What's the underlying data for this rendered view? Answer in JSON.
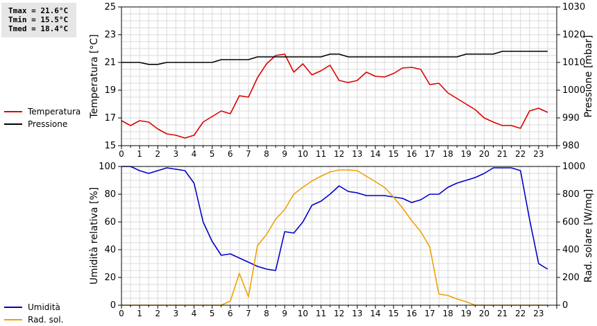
{
  "stats": {
    "tmax": "Tmax = 21.6°C",
    "tmin": "Tmin = 15.5°C",
    "tmed": "Tmed = 18.4°C"
  },
  "colors": {
    "temperature": "#dd0000",
    "pressure": "#000000",
    "humidity": "#0000c8",
    "radiation": "#f0a000",
    "grid": "#d9d9d9"
  },
  "chart_data": [
    {
      "type": "line",
      "title": "",
      "xlabel": "",
      "x_range": [
        0,
        24
      ],
      "x_ticks": [
        "0",
        "1",
        "2",
        "3",
        "4",
        "5",
        "6",
        "7",
        "8",
        "9",
        "10",
        "11",
        "12",
        "13",
        "14",
        "15",
        "16",
        "17",
        "18",
        "19",
        "20",
        "21",
        "22",
        "23"
      ],
      "y_left": {
        "label": "Temperatura [°C]",
        "range": [
          15,
          25
        ],
        "ticks": [
          "15",
          "17",
          "19",
          "21",
          "23",
          "25"
        ]
      },
      "y_right": {
        "label": "Pressione [mbar]",
        "range": [
          980,
          1030
        ],
        "ticks": [
          "980",
          "990",
          "1000",
          "1010",
          "1020",
          "1030"
        ]
      },
      "grid": true,
      "series": [
        {
          "name": "Temperatura",
          "axis": "left",
          "x": [
            0,
            0.5,
            1,
            1.5,
            2,
            2.5,
            3,
            3.5,
            4,
            4.5,
            5,
            5.5,
            6,
            6.5,
            7,
            7.5,
            8,
            8.5,
            9,
            9.5,
            10,
            10.5,
            11,
            11.5,
            12,
            12.5,
            13,
            13.5,
            14,
            14.5,
            15,
            15.5,
            16,
            16.5,
            17,
            17.5,
            18,
            18.5,
            19,
            19.5,
            20,
            20.5,
            21,
            21.5,
            22,
            22.5,
            23,
            23.5
          ],
          "values": [
            16.8,
            16.45,
            16.8,
            16.7,
            16.2,
            15.85,
            15.75,
            15.55,
            15.75,
            16.7,
            17.1,
            17.5,
            17.3,
            18.6,
            18.5,
            19.9,
            20.9,
            21.5,
            21.6,
            20.3,
            20.9,
            20.1,
            20.4,
            20.8,
            19.7,
            19.55,
            19.7,
            20.3,
            20.0,
            19.95,
            20.2,
            20.6,
            20.65,
            20.5,
            19.4,
            19.5,
            18.8,
            18.4,
            18.0,
            17.6,
            17.0,
            16.7,
            16.45,
            16.45,
            16.25,
            17.5,
            17.7,
            17.4
          ]
        },
        {
          "name": "Pressione",
          "axis": "right",
          "x": [
            0,
            0.5,
            1,
            1.5,
            2,
            2.5,
            3,
            3.5,
            4,
            4.5,
            5,
            5.5,
            6,
            6.5,
            7,
            7.5,
            8,
            8.5,
            9,
            9.5,
            10,
            10.5,
            11,
            11.5,
            12,
            12.5,
            13,
            13.5,
            14,
            14.5,
            15,
            15.5,
            16,
            16.5,
            17,
            17.5,
            18,
            18.5,
            19,
            19.5,
            20,
            20.5,
            21,
            21.5,
            22,
            22.5,
            23,
            23.5
          ],
          "values": [
            1010,
            1010,
            1010,
            1009.3,
            1009.3,
            1010,
            1010,
            1010,
            1010,
            1010,
            1010,
            1011,
            1011,
            1011,
            1011,
            1012,
            1012,
            1012,
            1012,
            1012,
            1012,
            1012,
            1012,
            1013,
            1013,
            1012,
            1012,
            1012,
            1012,
            1012,
            1012,
            1012,
            1012,
            1012,
            1012,
            1012,
            1012,
            1012,
            1013,
            1013,
            1013,
            1013,
            1014,
            1014,
            1014,
            1014,
            1014,
            1014
          ]
        }
      ]
    },
    {
      "type": "line",
      "title": "",
      "xlabel": "",
      "x_range": [
        0,
        24
      ],
      "x_ticks": [
        "0",
        "1",
        "2",
        "3",
        "4",
        "5",
        "6",
        "7",
        "8",
        "9",
        "10",
        "11",
        "12",
        "13",
        "14",
        "15",
        "16",
        "17",
        "18",
        "19",
        "20",
        "21",
        "22",
        "23"
      ],
      "y_left": {
        "label": "Umidità relativa [%]",
        "range": [
          0,
          100
        ],
        "ticks": [
          "0",
          "20",
          "40",
          "60",
          "80",
          "100"
        ]
      },
      "y_right": {
        "label": "Rad. solare [W/mq]",
        "range": [
          0,
          1000
        ],
        "ticks": [
          "0",
          "200",
          "400",
          "600",
          "800",
          "1000"
        ]
      },
      "grid": true,
      "series": [
        {
          "name": "Umidità",
          "axis": "left",
          "x": [
            0,
            0.5,
            1,
            1.5,
            2,
            2.5,
            3,
            3.5,
            4,
            4.5,
            5,
            5.5,
            6,
            6.5,
            7,
            7.5,
            8,
            8.5,
            9,
            9.5,
            10,
            10.5,
            11,
            11.5,
            12,
            12.5,
            13,
            13.5,
            14,
            14.5,
            15,
            15.5,
            16,
            16.5,
            17,
            17.5,
            18,
            18.5,
            19,
            19.5,
            20,
            20.5,
            21,
            21.5,
            22,
            22.5,
            23,
            23.5
          ],
          "values": [
            100,
            100,
            97,
            95,
            97,
            99,
            98,
            97,
            88,
            60,
            46,
            36,
            37,
            34,
            31,
            28,
            26,
            25,
            53,
            52,
            60,
            72,
            75,
            80,
            86,
            82,
            81,
            79,
            79,
            79,
            78,
            77,
            74,
            76,
            80,
            80,
            85,
            88,
            90,
            92,
            95,
            99,
            99,
            99,
            97,
            62,
            30,
            26
          ]
        },
        {
          "name": "Rad. sol.",
          "axis": "right",
          "x": [
            0,
            0.5,
            1,
            1.5,
            2,
            2.5,
            3,
            3.5,
            4,
            4.5,
            5,
            5.5,
            6,
            6.5,
            7,
            7.5,
            8,
            8.5,
            9,
            9.5,
            10,
            10.5,
            11,
            11.5,
            12,
            12.5,
            13,
            13.5,
            14,
            14.5,
            15,
            15.5,
            16,
            16.5,
            17,
            17.5,
            18,
            18.5,
            19,
            19.5,
            20,
            20.5,
            21,
            21.5,
            22,
            22.5,
            23,
            23.5
          ],
          "values": [
            0,
            0,
            0,
            0,
            0,
            0,
            0,
            0,
            0,
            0,
            0,
            0,
            30,
            230,
            60,
            430,
            510,
            620,
            690,
            800,
            850,
            895,
            930,
            960,
            975,
            975,
            970,
            930,
            890,
            850,
            780,
            700,
            610,
            530,
            420,
            80,
            70,
            45,
            25,
            0,
            0,
            0,
            0,
            0,
            0,
            0,
            0,
            0
          ]
        }
      ]
    }
  ]
}
